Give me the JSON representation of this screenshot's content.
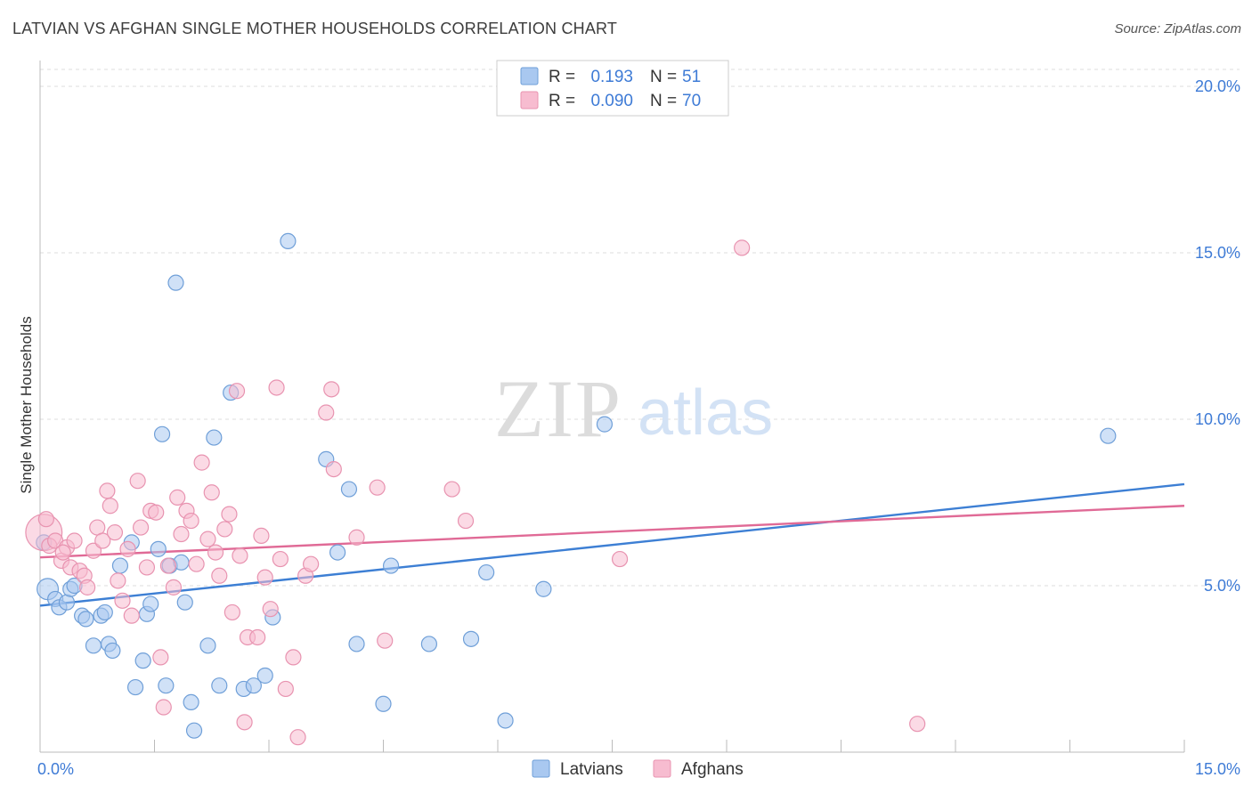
{
  "title": "LATVIAN VS AFGHAN SINGLE MOTHER HOUSEHOLDS CORRELATION CHART",
  "source": "Source: ZipAtlas.com",
  "watermark": {
    "zip": "ZIP",
    "atlas": "atlas"
  },
  "chart_data": {
    "type": "scatter",
    "title": "LATVIAN VS AFGHAN SINGLE MOTHER HOUSEHOLDS CORRELATION CHART",
    "xlabel": "",
    "ylabel": "Single Mother Households",
    "xlim": [
      0,
      15
    ],
    "ylim": [
      0,
      20.5
    ],
    "x_tick_labels": [
      {
        "value": 0,
        "label": "0.0%"
      },
      {
        "value": 15,
        "label": "15.0%"
      }
    ],
    "y_tick_labels": [
      {
        "value": 5,
        "label": "5.0%"
      },
      {
        "value": 10,
        "label": "10.0%"
      },
      {
        "value": 15,
        "label": "15.0%"
      },
      {
        "value": 20,
        "label": "20.0%"
      }
    ],
    "legend_top": [
      {
        "r_label": "R =",
        "r_value": "0.193",
        "n_label": "N =",
        "n_value": "51",
        "series": "Latvians"
      },
      {
        "r_label": "R =",
        "r_value": "0.090",
        "n_label": "N =",
        "n_value": "70",
        "series": "Afghans"
      }
    ],
    "legend_bottom": [
      "Latvians",
      "Afghans"
    ],
    "colors": {
      "latvians_fill": "#a9c8f0",
      "latvians_stroke": "#6f9fd8",
      "latvians_line": "#3d7fd4",
      "afghans_fill": "#f7bcd0",
      "afghans_stroke": "#e893b0",
      "afghans_line": "#e06a96",
      "tick_label": "#3e7bd6",
      "grid": "#dddddd"
    },
    "series": [
      {
        "name": "Latvians",
        "trend": {
          "x": [
            0,
            15
          ],
          "y": [
            4.4,
            8.05
          ]
        },
        "points": [
          [
            0.1,
            4.9
          ],
          [
            0.2,
            4.6
          ],
          [
            0.25,
            4.35
          ],
          [
            0.35,
            4.5
          ],
          [
            0.4,
            4.9
          ],
          [
            0.45,
            5.0
          ],
          [
            0.55,
            4.1
          ],
          [
            0.6,
            4.0
          ],
          [
            0.7,
            3.2
          ],
          [
            0.8,
            4.1
          ],
          [
            0.85,
            4.2
          ],
          [
            0.9,
            3.25
          ],
          [
            0.95,
            3.05
          ],
          [
            1.05,
            5.6
          ],
          [
            1.2,
            6.3
          ],
          [
            1.25,
            1.95
          ],
          [
            1.35,
            2.75
          ],
          [
            1.4,
            4.15
          ],
          [
            1.45,
            4.45
          ],
          [
            1.55,
            6.1
          ],
          [
            1.6,
            9.55
          ],
          [
            1.65,
            2.0
          ],
          [
            1.7,
            5.6
          ],
          [
            1.78,
            14.1
          ],
          [
            1.85,
            5.7
          ],
          [
            1.9,
            4.5
          ],
          [
            1.98,
            1.5
          ],
          [
            2.02,
            0.65
          ],
          [
            2.2,
            3.2
          ],
          [
            2.28,
            9.45
          ],
          [
            2.35,
            2.0
          ],
          [
            2.5,
            10.8
          ],
          [
            2.67,
            1.9
          ],
          [
            2.8,
            2.0
          ],
          [
            2.95,
            2.3
          ],
          [
            3.05,
            4.05
          ],
          [
            3.25,
            15.35
          ],
          [
            3.75,
            8.8
          ],
          [
            3.9,
            6.0
          ],
          [
            4.05,
            7.9
          ],
          [
            4.15,
            3.25
          ],
          [
            4.5,
            1.45
          ],
          [
            4.6,
            5.6
          ],
          [
            5.1,
            3.25
          ],
          [
            5.65,
            3.4
          ],
          [
            5.85,
            5.4
          ],
          [
            6.1,
            0.95
          ],
          [
            6.6,
            4.9
          ],
          [
            7.4,
            9.85
          ],
          [
            14.0,
            9.5
          ],
          [
            0.05,
            6.3
          ]
        ],
        "sizes": [
          14,
          10,
          10,
          10,
          10,
          10,
          10,
          10,
          10,
          10,
          10,
          10,
          10,
          10,
          10,
          10,
          10,
          10,
          10,
          10,
          10,
          10,
          10,
          10,
          10,
          10,
          10,
          10,
          10,
          10,
          10,
          10,
          10,
          10,
          10,
          10,
          10,
          10,
          10,
          10,
          10,
          10,
          10,
          10,
          10,
          10,
          10,
          10,
          10,
          10,
          10
        ]
      },
      {
        "name": "Afghans",
        "trend": {
          "x": [
            0,
            15
          ],
          "y": [
            5.85,
            7.4
          ]
        },
        "points": [
          [
            0.05,
            6.6
          ],
          [
            0.12,
            6.2
          ],
          [
            0.2,
            6.35
          ],
          [
            0.28,
            5.75
          ],
          [
            0.35,
            6.15
          ],
          [
            0.4,
            5.55
          ],
          [
            0.45,
            6.35
          ],
          [
            0.52,
            5.45
          ],
          [
            0.58,
            5.3
          ],
          [
            0.62,
            4.95
          ],
          [
            0.7,
            6.05
          ],
          [
            0.75,
            6.75
          ],
          [
            0.82,
            6.35
          ],
          [
            0.88,
            7.85
          ],
          [
            0.92,
            7.4
          ],
          [
            0.98,
            6.6
          ],
          [
            1.02,
            5.15
          ],
          [
            1.08,
            4.55
          ],
          [
            1.15,
            6.1
          ],
          [
            1.2,
            4.1
          ],
          [
            1.28,
            8.15
          ],
          [
            1.32,
            6.75
          ],
          [
            1.4,
            5.55
          ],
          [
            1.45,
            7.25
          ],
          [
            1.52,
            7.2
          ],
          [
            1.58,
            2.85
          ],
          [
            1.62,
            1.35
          ],
          [
            1.68,
            5.6
          ],
          [
            1.75,
            4.95
          ],
          [
            1.8,
            7.65
          ],
          [
            1.85,
            6.55
          ],
          [
            1.92,
            7.25
          ],
          [
            1.98,
            6.95
          ],
          [
            2.05,
            5.65
          ],
          [
            2.12,
            8.7
          ],
          [
            2.2,
            6.4
          ],
          [
            2.25,
            7.8
          ],
          [
            2.3,
            6.0
          ],
          [
            2.35,
            5.3
          ],
          [
            2.42,
            6.7
          ],
          [
            2.48,
            7.15
          ],
          [
            2.52,
            4.2
          ],
          [
            2.58,
            10.85
          ],
          [
            2.62,
            5.9
          ],
          [
            2.68,
            0.9
          ],
          [
            2.72,
            3.45
          ],
          [
            2.85,
            3.45
          ],
          [
            2.9,
            6.5
          ],
          [
            2.95,
            5.25
          ],
          [
            3.02,
            4.3
          ],
          [
            3.1,
            10.95
          ],
          [
            3.15,
            5.8
          ],
          [
            3.22,
            1.9
          ],
          [
            3.32,
            2.85
          ],
          [
            3.38,
            0.45
          ],
          [
            3.48,
            5.3
          ],
          [
            3.55,
            5.65
          ],
          [
            3.75,
            10.2
          ],
          [
            3.82,
            10.9
          ],
          [
            3.85,
            8.5
          ],
          [
            4.15,
            6.45
          ],
          [
            4.42,
            7.95
          ],
          [
            4.52,
            3.35
          ],
          [
            5.4,
            7.9
          ],
          [
            5.58,
            6.95
          ],
          [
            7.6,
            5.8
          ],
          [
            9.2,
            15.15
          ],
          [
            11.5,
            0.85
          ],
          [
            0.08,
            7.0
          ],
          [
            0.3,
            6.0
          ]
        ],
        "sizes": [
          24,
          10,
          10,
          10,
          10,
          10,
          10,
          10,
          10,
          10,
          10,
          10,
          10,
          10,
          10,
          10,
          10,
          10,
          10,
          10,
          10,
          10,
          10,
          10,
          10,
          10,
          10,
          10,
          10,
          10,
          10,
          10,
          10,
          10,
          10,
          10,
          10,
          10,
          10,
          10,
          10,
          10,
          10,
          10,
          10,
          10,
          10,
          10,
          10,
          10,
          10,
          10,
          10,
          10,
          10,
          10,
          10,
          10,
          10,
          10,
          10,
          10,
          10,
          10,
          10,
          10,
          10,
          10,
          10,
          10
        ]
      }
    ]
  }
}
